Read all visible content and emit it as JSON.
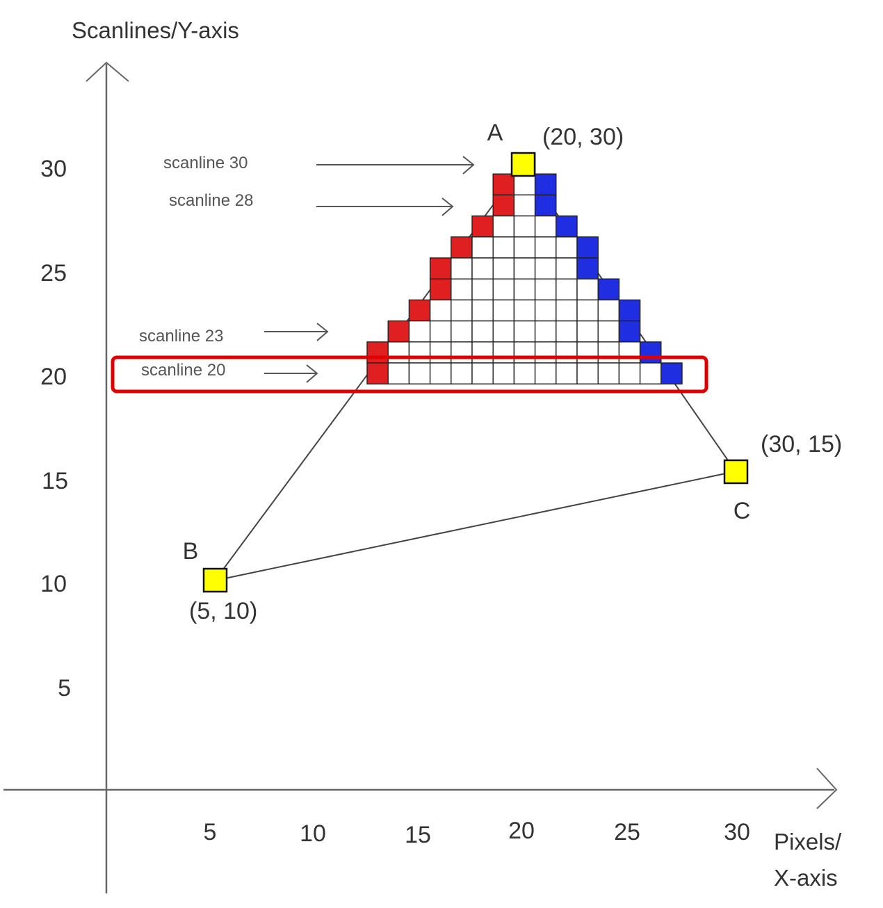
{
  "axes": {
    "y_label": "Scanlines/Y-axis",
    "x_label_line1": "Pixels/",
    "x_label_line2": "X-axis",
    "x_ticks": [
      "5",
      "10",
      "15",
      "20",
      "25",
      "30"
    ],
    "y_ticks": [
      "30",
      "25",
      "20",
      "15",
      "10",
      "5"
    ]
  },
  "vertices": [
    {
      "name": "A",
      "coords": "(20, 30)",
      "x": 20,
      "y": 30
    },
    {
      "name": "B",
      "coords": "(5, 10)",
      "x": 5,
      "y": 10
    },
    {
      "name": "C",
      "coords": "(30, 15)",
      "x": 30,
      "y": 15
    }
  ],
  "scanline_labels": [
    "scanline 30",
    "scanline 28",
    "scanline 23",
    "scanline 20"
  ],
  "highlighted_scanline": 20,
  "colors": {
    "left_edge": "#e02020",
    "right_edge": "#1f2ee0",
    "vertex_fill": "#ffff00",
    "highlight": "#e00000",
    "line": "#444444"
  },
  "pixel_rows": [
    {
      "scanline": 30,
      "red": [],
      "white": [
        20
      ],
      "blue": []
    },
    {
      "scanline": 29,
      "red": [
        19
      ],
      "white": [
        20
      ],
      "blue": [
        21
      ]
    },
    {
      "scanline": 28,
      "red": [
        19
      ],
      "white": [
        20
      ],
      "blue": [
        21
      ]
    },
    {
      "scanline": 27,
      "red": [
        18
      ],
      "white": [
        19,
        20,
        21
      ],
      "blue": [
        22
      ]
    },
    {
      "scanline": 26,
      "red": [
        17
      ],
      "white": [
        18,
        19,
        20,
        21,
        22
      ],
      "blue": [
        23
      ]
    },
    {
      "scanline": 25,
      "red": [
        16
      ],
      "white": [
        17,
        18,
        19,
        20,
        21,
        22
      ],
      "blue": [
        23
      ]
    },
    {
      "scanline": 24,
      "red": [
        16
      ],
      "white": [
        17,
        18,
        19,
        20,
        21,
        22,
        23
      ],
      "blue": [
        24
      ]
    },
    {
      "scanline": 23,
      "red": [
        15
      ],
      "white": [
        16,
        17,
        18,
        19,
        20,
        21,
        22,
        23,
        24
      ],
      "blue": [
        25
      ]
    },
    {
      "scanline": 22,
      "red": [
        14
      ],
      "white": [
        15,
        16,
        17,
        18,
        19,
        20,
        21,
        22,
        23,
        24
      ],
      "blue": [
        25
      ]
    },
    {
      "scanline": 21,
      "red": [
        13
      ],
      "white": [
        14,
        15,
        16,
        17,
        18,
        19,
        20,
        21,
        22,
        23,
        24,
        25
      ],
      "blue": [
        26
      ]
    },
    {
      "scanline": 20,
      "red": [
        13
      ],
      "white": [
        14,
        15,
        16,
        17,
        18,
        19,
        20,
        21,
        22,
        23,
        24,
        25,
        26
      ],
      "blue": [
        27
      ]
    }
  ]
}
